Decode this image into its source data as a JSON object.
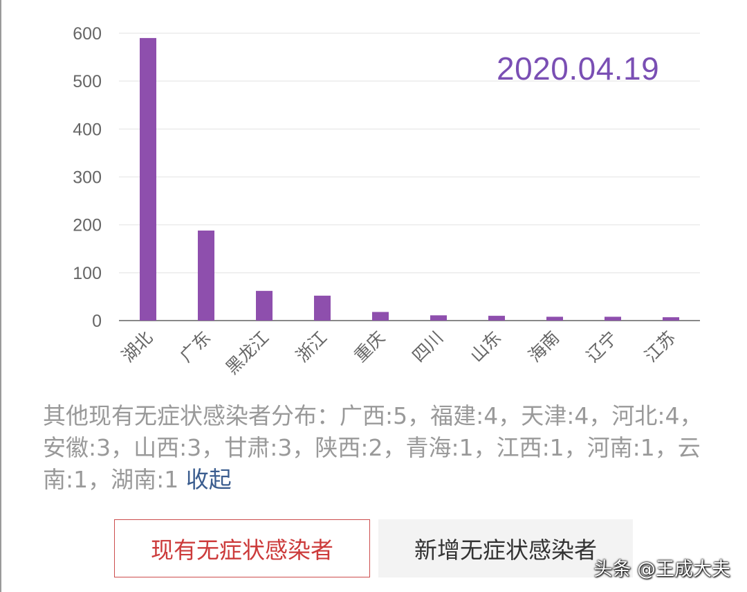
{
  "chart_data": {
    "type": "bar",
    "categories": [
      "湖北",
      "广东",
      "黑龙江",
      "浙江",
      "重庆",
      "四川",
      "山东",
      "海南",
      "辽宁",
      "江苏"
    ],
    "values": [
      590,
      188,
      62,
      52,
      18,
      11,
      10,
      8,
      8,
      7
    ],
    "yticks": [
      "0",
      "100",
      "200",
      "300",
      "400",
      "500",
      "600"
    ],
    "ylim": [
      0,
      600
    ],
    "grid": true,
    "bar_color": "#8e4fad",
    "annotation": "2020.04.19"
  },
  "other_distribution": "其他现有无症状感染者分布：广西:5，福建:4，天津:4，河北:4，安徽:3，山西:3，甘肃:3，陕西:2，青海:1，江西:1，河南:1，云南:1，湖南:1",
  "collapse_label": "收起",
  "buttons": {
    "current": "现有无症状感染者",
    "new": "新增无症状感染者"
  },
  "watermark": "头条 @王成大夫",
  "colors": {
    "accent_red": "#cc3b3b",
    "link_blue": "#3b5d8f",
    "date_purple": "#7a4fb4"
  }
}
